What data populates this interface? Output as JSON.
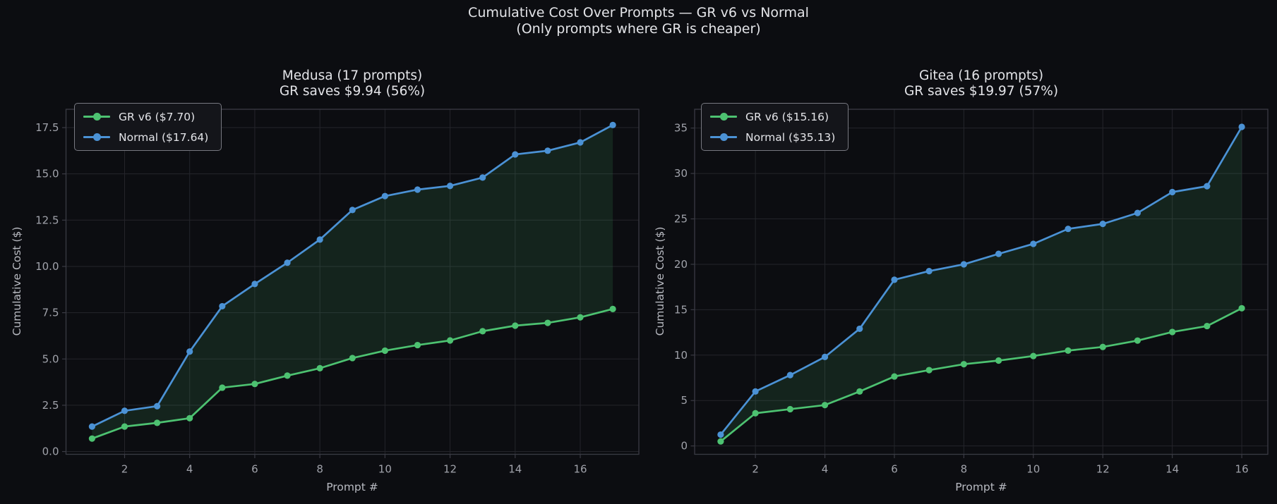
{
  "figure": {
    "title_line1": "Cumulative Cost Over Prompts — GR v6 vs Normal",
    "title_line2": "(Only prompts where GR is cheaper)"
  },
  "colors": {
    "background": "#0c0d11",
    "grid": "#24252b",
    "spine": "#3a3b44",
    "tick_label": "#a0a2aa",
    "axis_label": "#b8bac1",
    "title_text": "#e3e4e8",
    "gr_green": "#4dc271",
    "normal_blue": "#4b92d5",
    "fill_green": "#4dc271",
    "legend_bg": "#14151a",
    "legend_border": "#777880"
  },
  "chart_data": [
    {
      "type": "line",
      "title": "Medusa (17 prompts)",
      "subtitle": "GR saves $9.94 (56%)",
      "xlabel": "Prompt #",
      "ylabel": "Cumulative Cost ($)",
      "x": [
        1,
        2,
        3,
        4,
        5,
        6,
        7,
        8,
        9,
        10,
        11,
        12,
        13,
        14,
        15,
        16,
        17
      ],
      "series": [
        {
          "name": "GR v6 ($7.70)",
          "color": "gr_green",
          "values": [
            0.7,
            1.35,
            1.55,
            1.8,
            3.45,
            3.65,
            4.1,
            4.5,
            5.05,
            5.45,
            5.75,
            6.0,
            6.5,
            6.8,
            6.95,
            7.25,
            7.7
          ]
        },
        {
          "name": "Normal ($17.64)",
          "color": "normal_blue",
          "values": [
            1.35,
            2.2,
            2.45,
            5.4,
            7.85,
            9.05,
            10.2,
            11.45,
            13.05,
            13.8,
            14.15,
            14.35,
            14.8,
            16.05,
            16.25,
            16.7,
            17.64
          ]
        }
      ],
      "fill_between_series": true,
      "grid": true,
      "legend_position": "upper-left",
      "xticks": [
        2,
        4,
        6,
        8,
        10,
        12,
        14,
        16
      ],
      "xtick_labels": [
        "2",
        "4",
        "6",
        "8",
        "10",
        "12",
        "14",
        "16"
      ],
      "yticks": [
        0,
        2.5,
        5,
        7.5,
        10,
        12.5,
        15,
        17.5
      ],
      "ytick_labels": [
        "0.0",
        "2.5",
        "5.0",
        "7.5",
        "10.0",
        "12.5",
        "15.0",
        "17.5"
      ],
      "xlim": [
        0.2,
        17.8
      ],
      "ylim": [
        -0.15,
        18.49
      ]
    },
    {
      "type": "line",
      "title": "Gitea (16 prompts)",
      "subtitle": "GR saves $19.97 (57%)",
      "xlabel": "Prompt #",
      "ylabel": "Cumulative Cost ($)",
      "x": [
        1,
        2,
        3,
        4,
        5,
        6,
        7,
        8,
        9,
        10,
        11,
        12,
        13,
        14,
        15,
        16
      ],
      "series": [
        {
          "name": "GR v6 ($15.16)",
          "color": "gr_green",
          "values": [
            0.5,
            3.6,
            4.05,
            4.5,
            6.0,
            7.65,
            8.35,
            9.0,
            9.4,
            9.9,
            10.5,
            10.9,
            11.6,
            12.55,
            13.2,
            15.16
          ]
        },
        {
          "name": "Normal ($35.13)",
          "color": "normal_blue",
          "values": [
            1.25,
            6.0,
            7.8,
            9.8,
            12.9,
            18.3,
            19.25,
            20.0,
            21.15,
            22.25,
            23.9,
            24.45,
            25.65,
            27.95,
            28.6,
            35.13
          ]
        }
      ],
      "fill_between_series": true,
      "grid": true,
      "legend_position": "upper-left",
      "xticks": [
        2,
        4,
        6,
        8,
        10,
        12,
        14,
        16
      ],
      "xtick_labels": [
        "2",
        "4",
        "6",
        "8",
        "10",
        "12",
        "14",
        "16"
      ],
      "yticks": [
        0,
        5,
        10,
        15,
        20,
        25,
        30,
        35
      ],
      "ytick_labels": [
        "0",
        "5",
        "10",
        "15",
        "20",
        "25",
        "30",
        "35"
      ],
      "xlim": [
        0.25,
        16.75
      ],
      "ylim": [
        -0.92,
        37.07
      ]
    }
  ]
}
